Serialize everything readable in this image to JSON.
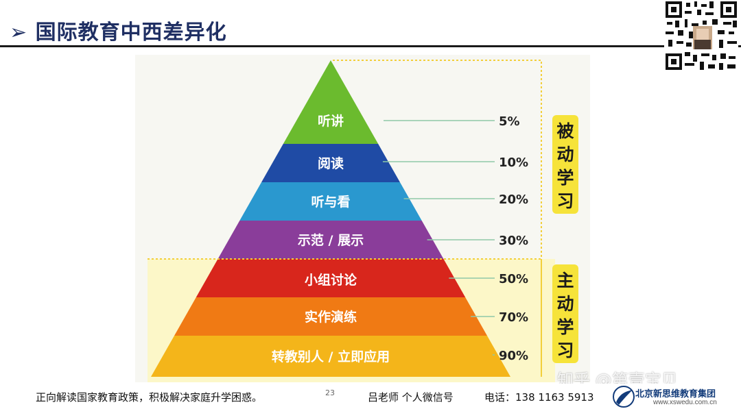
{
  "header": {
    "title": "➢ 国际教育中西差异化"
  },
  "pyramid": {
    "layers": [
      {
        "label": "听讲",
        "rate": "5%",
        "color": "#6bbb2e"
      },
      {
        "label": "阅读",
        "rate": "10%",
        "color": "#1f4ba5"
      },
      {
        "label": "听与看",
        "rate": "20%",
        "color": "#2a98cf"
      },
      {
        "label": "示范 / 展示",
        "rate": "30%",
        "color": "#8a3d9a"
      },
      {
        "label": "小组讨论",
        "rate": "50%",
        "color": "#d8261c"
      },
      {
        "label": "实作演练",
        "rate": "70%",
        "color": "#f07a14"
      },
      {
        "label": "转教别人 / 立即应用",
        "rate": "90%",
        "color": "#f4b51a"
      }
    ],
    "groups": [
      {
        "label": "被动学习"
      },
      {
        "label": "主动学习"
      }
    ]
  },
  "footer": {
    "slogan": "正向解读国家教育政策，积极解决家庭升学困惑。",
    "page_number": "23",
    "teacher": "吕老师 个人微信号",
    "phone": "电话：138 1163 5913"
  },
  "watermark": "知乎 @第壹宝贝",
  "logo": {
    "org_name": "北京新思维教育集团",
    "site": "www.xswedu.com.cn"
  }
}
